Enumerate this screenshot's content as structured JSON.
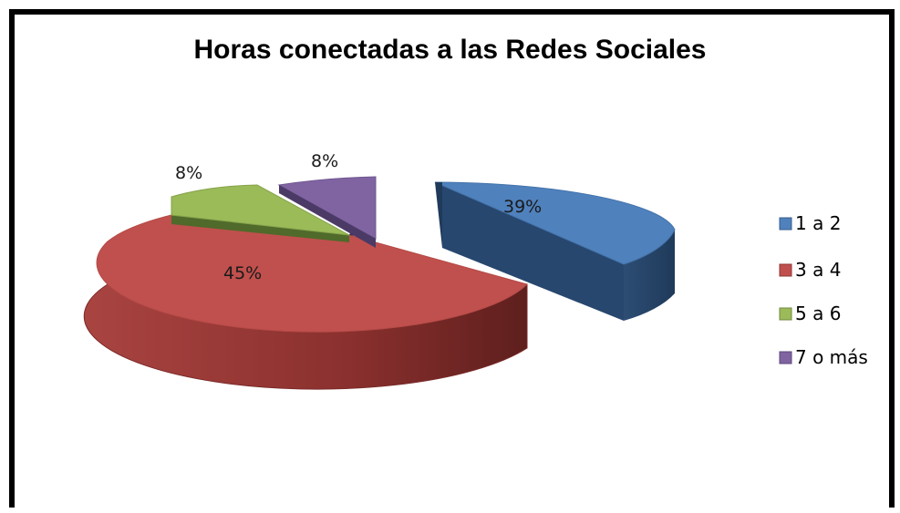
{
  "chart_data": {
    "type": "pie",
    "title": "Horas conectadas a las Redes Sociales",
    "categories": [
      "1 a 2",
      "3 a 4",
      "5 a 6",
      "7 o más"
    ],
    "values": [
      39,
      45,
      8,
      8
    ],
    "data_labels": [
      "39%",
      "45%",
      "8%",
      "8%"
    ],
    "colors": [
      "#4f81bd",
      "#c0504d",
      "#9bbb59",
      "#8064a2"
    ],
    "legend_position": "right",
    "style": "3d-exploded"
  }
}
